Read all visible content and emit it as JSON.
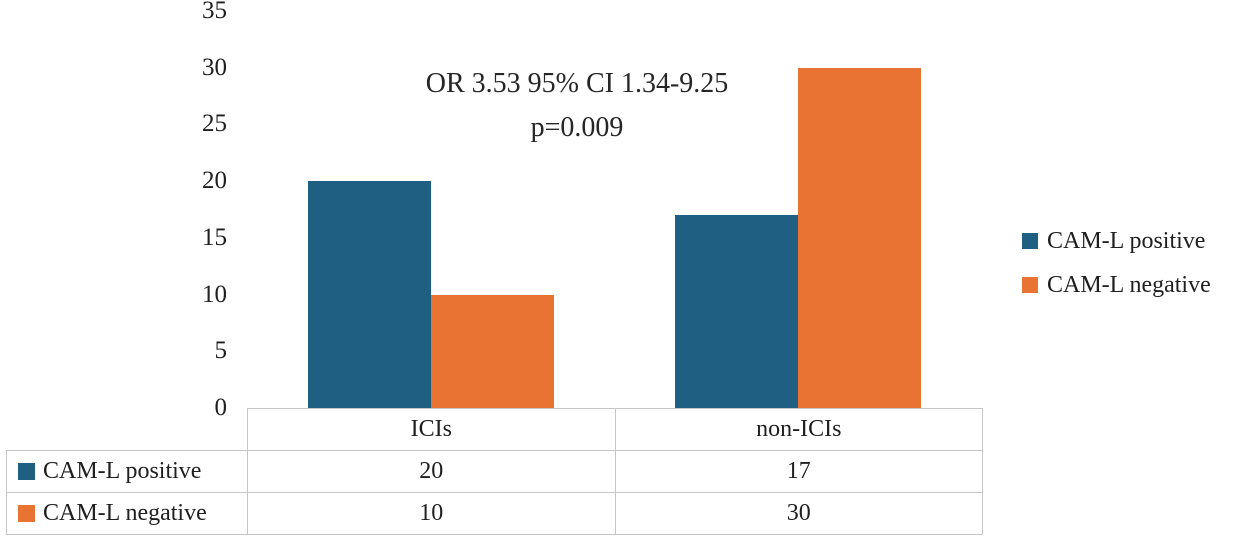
{
  "chart_data": {
    "type": "bar",
    "title": "",
    "xlabel": "",
    "ylabel": "",
    "categories": [
      "ICIs",
      "non-ICIs"
    ],
    "series": [
      {
        "name": "CAM-L positive",
        "color": "#1E5F82",
        "values": [
          20,
          17
        ]
      },
      {
        "name": "CAM-L negative",
        "color": "#E97332",
        "values": [
          10,
          30
        ]
      }
    ],
    "ylim": [
      0,
      35
    ],
    "yticks": [
      35,
      30,
      25,
      20,
      15,
      10,
      5,
      0
    ],
    "grid": false,
    "legend_position": "right",
    "data_table_shown": true,
    "annotation": {
      "line1": "OR 3.53 95% CI 1.34-9.25",
      "line2": "p=0.009"
    }
  },
  "colors": {
    "positive": "#1E5F82",
    "negative": "#E97332",
    "table_border": "#C6C6C6",
    "text": "#1F1F1F"
  }
}
